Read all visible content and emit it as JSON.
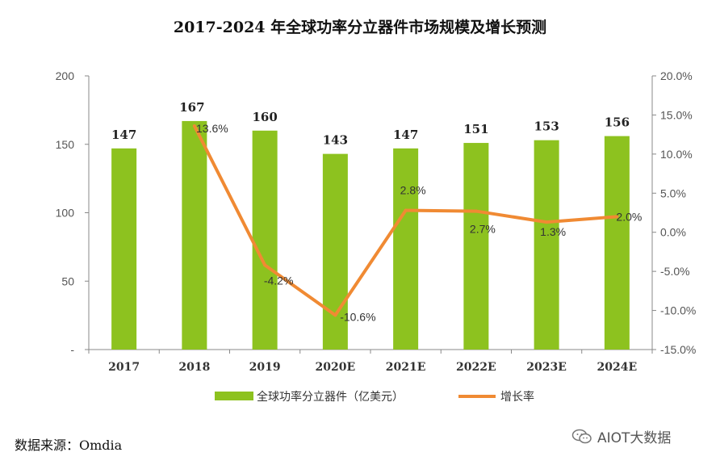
{
  "chart_data": {
    "type": "bar",
    "title": "2017-2024 年全球功率分立器件市场规模及增长预测",
    "categories": [
      "2017",
      "2018",
      "2019",
      "2020E",
      "2021E",
      "2022E",
      "2023E",
      "2024E"
    ],
    "series": [
      {
        "name": "全球功率分立器件（亿美元）",
        "type": "bar",
        "axis": "left",
        "color": "#8dc21f",
        "values": [
          147,
          167,
          160,
          143,
          147,
          151,
          153,
          156
        ],
        "labels": [
          "147",
          "167",
          "160",
          "143",
          "147",
          "151",
          "153",
          "156"
        ]
      },
      {
        "name": "增长率",
        "type": "line",
        "axis": "right",
        "color": "#f08a33",
        "values": [
          null,
          13.6,
          -4.2,
          -10.6,
          2.8,
          2.7,
          1.3,
          2.0
        ],
        "labels": [
          "",
          "13.6%",
          "-4.2%",
          "-10.6%",
          "2.8%",
          "2.7%",
          "1.3%",
          "2.0%"
        ]
      }
    ],
    "y_left": {
      "ylim": [
        0,
        200
      ],
      "ticks": [
        0,
        50,
        100,
        150,
        200
      ],
      "tick_labels": [
        "-",
        "50",
        "100",
        "150",
        "200"
      ]
    },
    "y_right": {
      "ylim": [
        -15,
        20
      ],
      "ticks": [
        -15,
        -10,
        -5,
        0,
        5,
        10,
        15,
        20
      ],
      "tick_labels": [
        "-15.0%",
        "-10.0%",
        "-5.0%",
        "0.0%",
        "5.0%",
        "10.0%",
        "15.0%",
        "20.0%"
      ]
    },
    "grid": false,
    "legend": "bottom-center"
  },
  "source": "数据来源：Omdia",
  "watermark": {
    "text": "AIOT大数据",
    "icon": "wechat-icon"
  }
}
